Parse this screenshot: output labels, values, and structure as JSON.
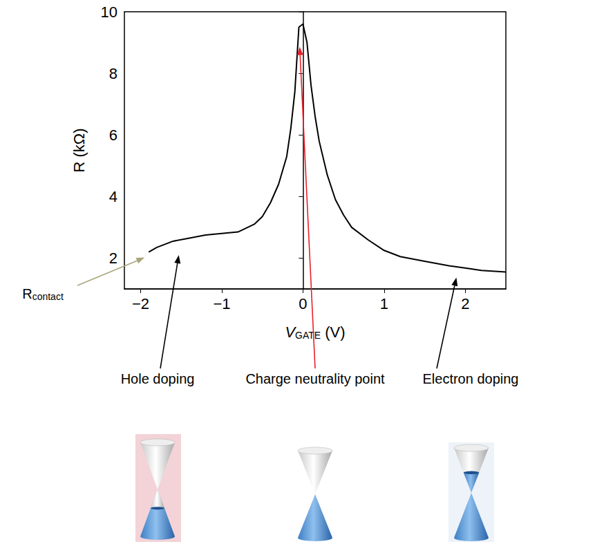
{
  "chart_data": {
    "type": "line",
    "xlabel": {
      "symbol": "V",
      "subscript": "GATE",
      "unit": " (V)"
    },
    "ylabel": "R (kΩ)",
    "x": [
      -1.9,
      -1.8,
      -1.6,
      -1.4,
      -1.2,
      -1.0,
      -0.8,
      -0.6,
      -0.5,
      -0.4,
      -0.3,
      -0.2,
      -0.15,
      -0.1,
      -0.05,
      0,
      0.05,
      0.1,
      0.15,
      0.2,
      0.3,
      0.4,
      0.5,
      0.6,
      0.8,
      1.0,
      1.2,
      1.5,
      1.8,
      2.0,
      2.2,
      2.5
    ],
    "values": [
      2.2,
      2.35,
      2.55,
      2.65,
      2.75,
      2.8,
      2.85,
      3.1,
      3.35,
      3.8,
      4.4,
      5.3,
      6.2,
      7.4,
      9.5,
      9.6,
      9.0,
      7.6,
      6.6,
      5.8,
      4.7,
      3.9,
      3.4,
      3.0,
      2.6,
      2.25,
      2.05,
      1.9,
      1.75,
      1.68,
      1.6,
      1.55
    ],
    "color": "#000000",
    "marker": "none",
    "grid": false,
    "xlim": [
      -2.2,
      2.5
    ],
    "xticks": [
      {
        "value": -2,
        "label": "−2"
      },
      {
        "value": -1,
        "label": "−1"
      },
      0,
      1,
      2
    ],
    "ylim": [
      1,
      10
    ],
    "yticks": [
      2,
      4,
      6,
      8,
      10
    ],
    "annotations": [
      {
        "text": "R",
        "subscript": "contact",
        "x": -1.95,
        "y": 2.02,
        "color": "#a9a57b"
      },
      {
        "text": "Hole doping",
        "x": -1.53,
        "y": 2.1,
        "color": "#000000"
      },
      {
        "text": "Charge neutrality point",
        "x": -0.04,
        "y": 8.86,
        "color": "#e8202a"
      },
      {
        "text": "Electron doping",
        "x": 1.89,
        "y": 1.37,
        "color": "#000000"
      }
    ]
  }
}
